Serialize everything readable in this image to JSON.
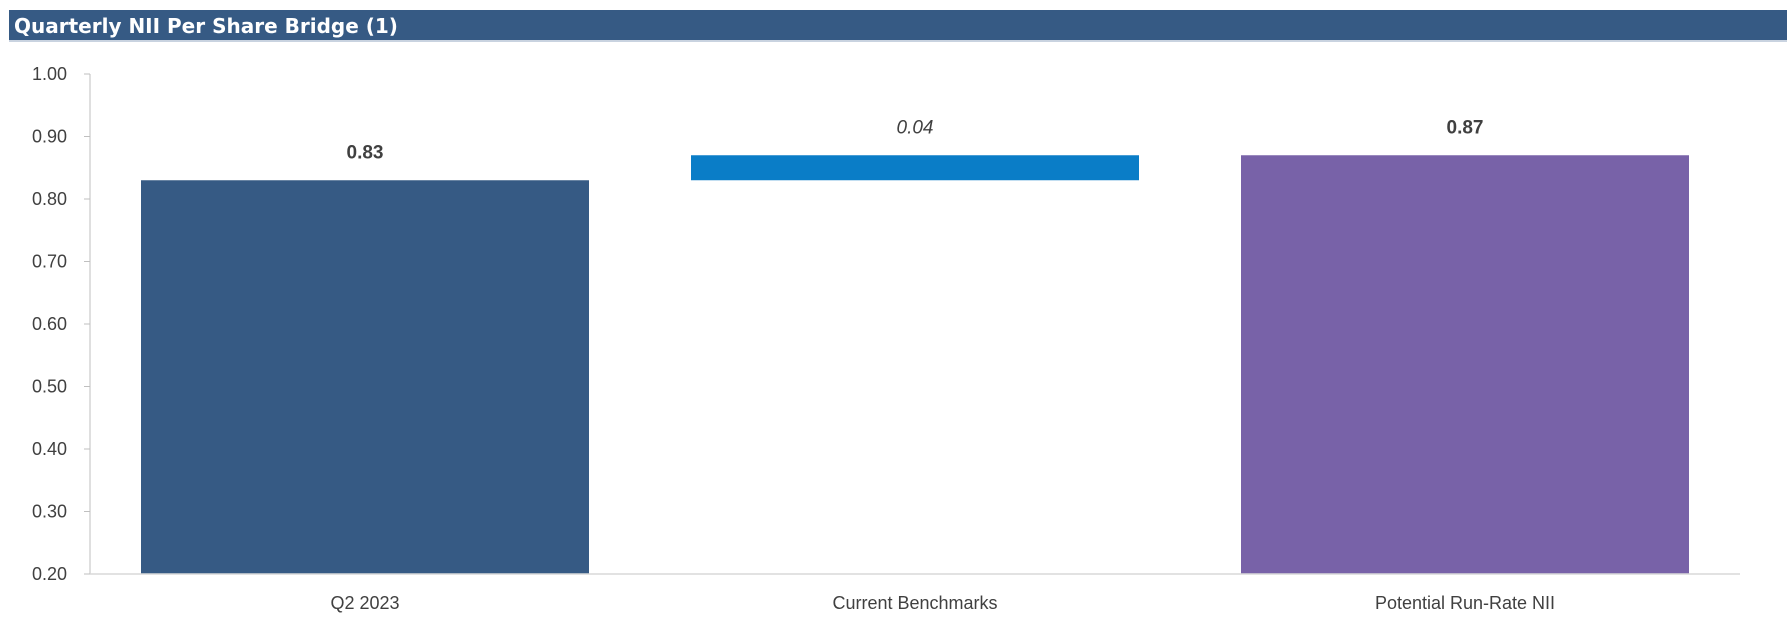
{
  "title": "Quarterly NII Per Share Bridge (1)",
  "chart_data": {
    "type": "bar",
    "subtype": "waterfall",
    "title": "Quarterly NII Per Share Bridge (1)",
    "xlabel": "",
    "ylabel": "",
    "ylim": [
      0.2,
      1.0
    ],
    "yticks": [
      "0.20",
      "0.30",
      "0.40",
      "0.50",
      "0.60",
      "0.70",
      "0.80",
      "0.90",
      "1.00"
    ],
    "categories": [
      "Q2 2023",
      "Current Benchmarks",
      "Potential Run-Rate NII"
    ],
    "bars": [
      {
        "category": "Q2 2023",
        "kind": "total",
        "base": 0.2,
        "value": 0.83,
        "label": "0.83",
        "label_style": "bold",
        "color": "#365a84"
      },
      {
        "category": "Current Benchmarks",
        "kind": "delta",
        "base": 0.83,
        "value": 0.87,
        "label": "0.04",
        "label_style": "italic",
        "color": "#0a7dc7"
      },
      {
        "category": "Potential Run-Rate NII",
        "kind": "total",
        "base": 0.2,
        "value": 0.87,
        "label": "0.87",
        "label_style": "bold",
        "color": "#7862a8"
      }
    ],
    "grid": false,
    "legend": "none"
  }
}
